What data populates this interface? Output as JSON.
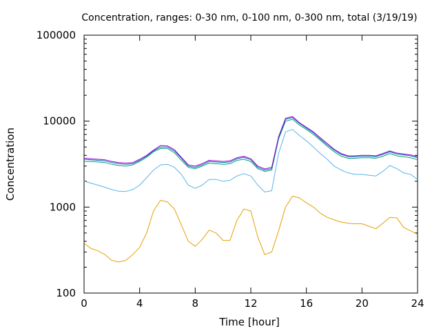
{
  "chart_data": {
    "type": "line",
    "title": "Concentration, ranges: 0-30 nm, 0-100 nm, 0-300 nm, total (3/19/19)",
    "xlabel": "Time [hour]",
    "ylabel": "Concentration",
    "xlim": [
      0,
      24
    ],
    "ylim": [
      100,
      100000
    ],
    "yscale": "log",
    "grid": false,
    "xticks": [
      0,
      4,
      8,
      12,
      16,
      20,
      24
    ],
    "xtick_labels": [
      "0",
      "4",
      "8",
      "12",
      "16",
      "20",
      "24"
    ],
    "yticks": [
      100,
      1000,
      10000,
      100000
    ],
    "ytick_labels": [
      "100",
      "1000",
      "10000",
      "100000"
    ],
    "x": [
      0,
      0.5,
      1,
      1.5,
      2,
      2.5,
      3,
      3.5,
      4,
      4.5,
      5,
      5.5,
      6,
      6.5,
      7,
      7.5,
      8,
      8.5,
      9,
      9.5,
      10,
      10.5,
      11,
      11.5,
      12,
      12.5,
      13,
      13.5,
      14,
      14.5,
      15,
      15.5,
      16,
      16.5,
      17,
      17.5,
      18,
      18.5,
      19,
      19.5,
      20,
      20.5,
      21,
      21.5,
      22,
      22.5,
      23,
      23.5,
      24
    ],
    "series": [
      {
        "color": "#e69f00",
        "values": [
          380,
          330,
          310,
          280,
          240,
          230,
          240,
          280,
          340,
          500,
          900,
          1200,
          1150,
          950,
          620,
          400,
          350,
          420,
          540,
          500,
          410,
          410,
          700,
          950,
          900,
          450,
          280,
          300,
          530,
          1000,
          1340,
          1280,
          1120,
          1000,
          850,
          760,
          710,
          670,
          650,
          640,
          640,
          600,
          560,
          650,
          760,
          750,
          580,
          530,
          480
        ]
      },
      {
        "color": "#56b4e9",
        "values": [
          2000,
          1900,
          1800,
          1700,
          1600,
          1530,
          1520,
          1600,
          1800,
          2200,
          2700,
          3100,
          3150,
          2900,
          2400,
          1800,
          1650,
          1800,
          2100,
          2100,
          2000,
          2050,
          2300,
          2450,
          2300,
          1800,
          1500,
          1550,
          4200,
          7500,
          8000,
          6800,
          5900,
          5000,
          4200,
          3600,
          3000,
          2700,
          2500,
          2400,
          2400,
          2350,
          2300,
          2600,
          3050,
          2800,
          2500,
          2400,
          2100
        ]
      },
      {
        "color": "#009e73",
        "values": [
          3400,
          3400,
          3350,
          3300,
          3150,
          3050,
          3000,
          3100,
          3400,
          3800,
          4400,
          4800,
          4800,
          4300,
          3500,
          2900,
          2800,
          3000,
          3250,
          3200,
          3150,
          3200,
          3500,
          3600,
          3400,
          2800,
          2600,
          2700,
          6200,
          10000,
          10500,
          9000,
          8000,
          7000,
          6000,
          5100,
          4400,
          3900,
          3700,
          3700,
          3750,
          3750,
          3700,
          3900,
          4200,
          3950,
          3850,
          3750,
          3550
        ]
      },
      {
        "color": "#0072b2",
        "values": [
          3600,
          3550,
          3500,
          3450,
          3300,
          3200,
          3150,
          3200,
          3500,
          3900,
          4500,
          5000,
          5000,
          4500,
          3700,
          3000,
          2900,
          3100,
          3400,
          3350,
          3300,
          3350,
          3650,
          3800,
          3550,
          2900,
          2700,
          2800,
          6400,
          10500,
          11000,
          9400,
          8300,
          7300,
          6200,
          5300,
          4600,
          4100,
          3850,
          3850,
          3900,
          3900,
          3850,
          4100,
          4400,
          4150,
          4050,
          3950,
          3750
        ]
      },
      {
        "color": "#9400d3",
        "values": [
          3700,
          3650,
          3600,
          3550,
          3400,
          3300,
          3250,
          3300,
          3600,
          4000,
          4600,
          5200,
          5150,
          4650,
          3800,
          3100,
          3000,
          3200,
          3500,
          3450,
          3400,
          3450,
          3750,
          3900,
          3650,
          3000,
          2780,
          2900,
          6600,
          10800,
          11300,
          9600,
          8500,
          7500,
          6400,
          5500,
          4700,
          4200,
          3950,
          3950,
          4000,
          4000,
          3950,
          4200,
          4500,
          4250,
          4150,
          4050,
          3850
        ]
      }
    ]
  }
}
